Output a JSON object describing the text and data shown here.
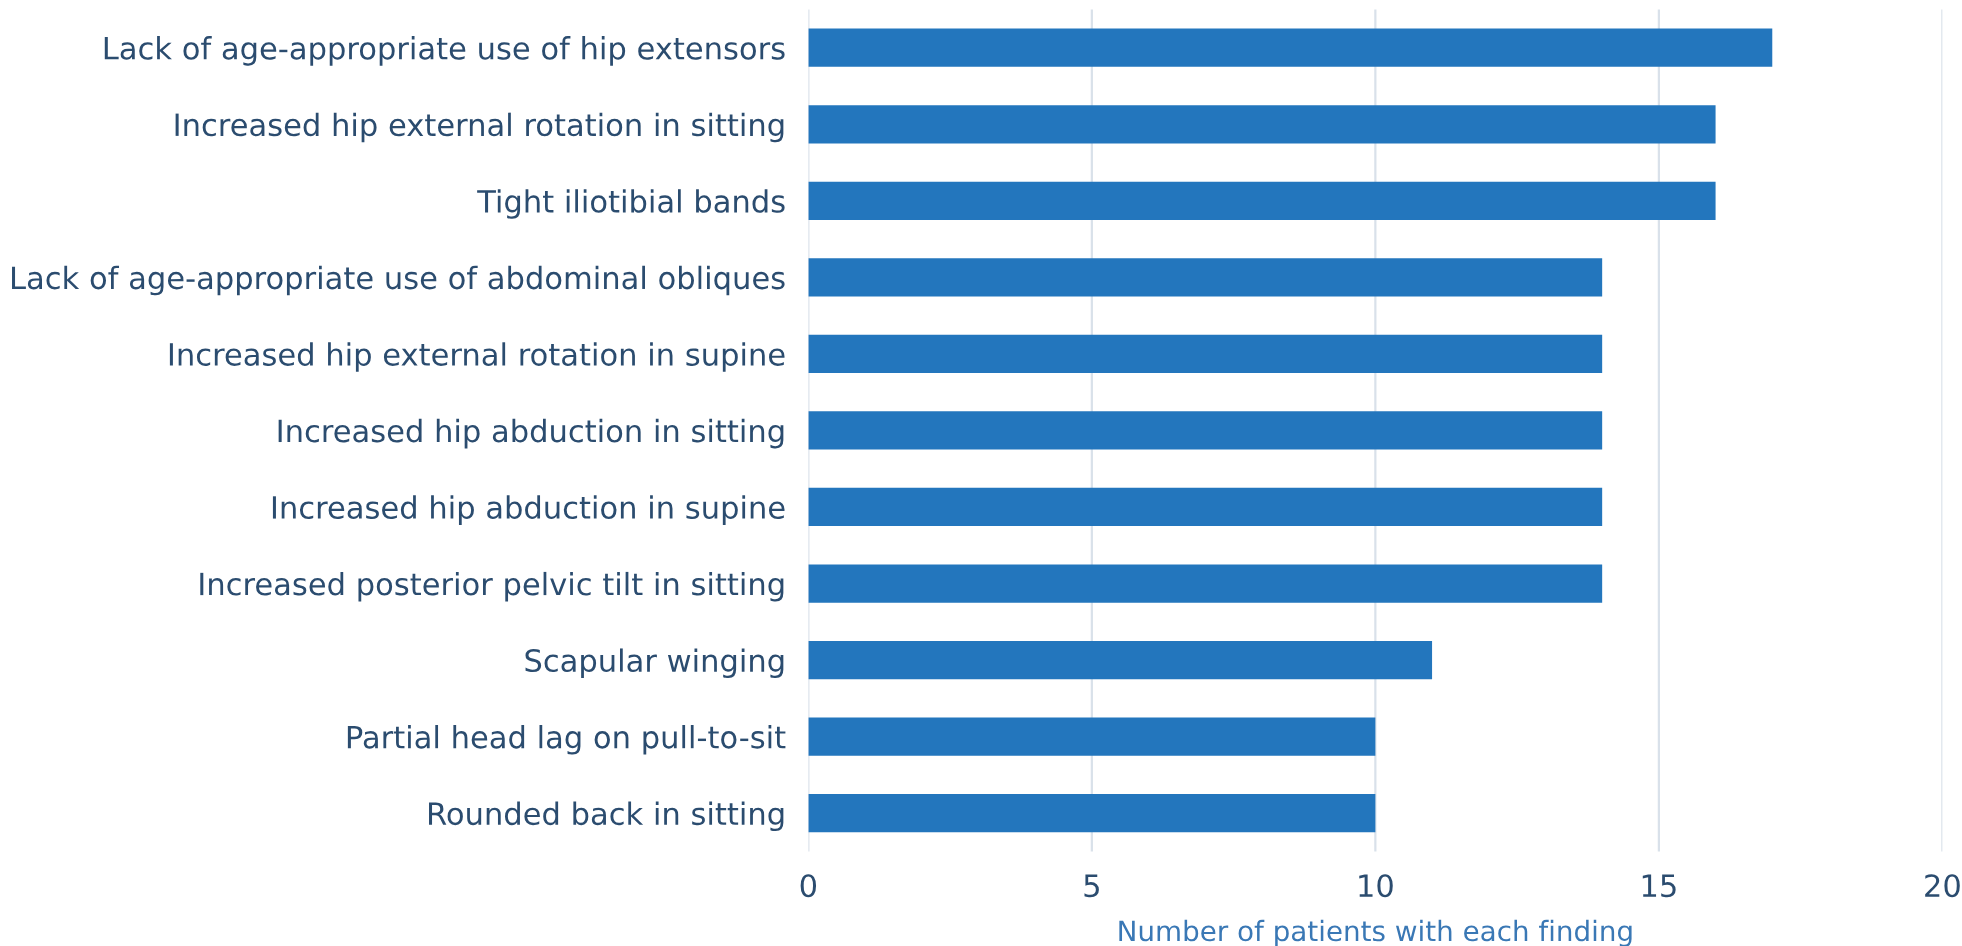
{
  "chart_data": {
    "type": "bar",
    "orientation": "horizontal",
    "xlabel": "Number of patients with each finding",
    "categories": [
      "Lack of age-appropriate use of hip extensors",
      "Increased hip external rotation in sitting",
      "Tight iliotibial bands",
      "Lack of age-appropriate use of abdominal obliques",
      "Increased hip external rotation in supine",
      "Increased hip abduction in sitting",
      "Increased hip abduction in supine",
      "Increased posterior pelvic tilt in sitting",
      "Scapular winging",
      "Partial head lag on pull-to-sit",
      "Rounded back in sitting"
    ],
    "values": [
      17,
      16,
      16,
      14,
      14,
      14,
      14,
      14,
      11,
      10,
      10
    ],
    "color": "#2376bd",
    "xlim": [
      0,
      20
    ],
    "xticks": [
      0,
      5,
      10,
      15,
      20
    ],
    "grid": "x",
    "legend": false
  }
}
